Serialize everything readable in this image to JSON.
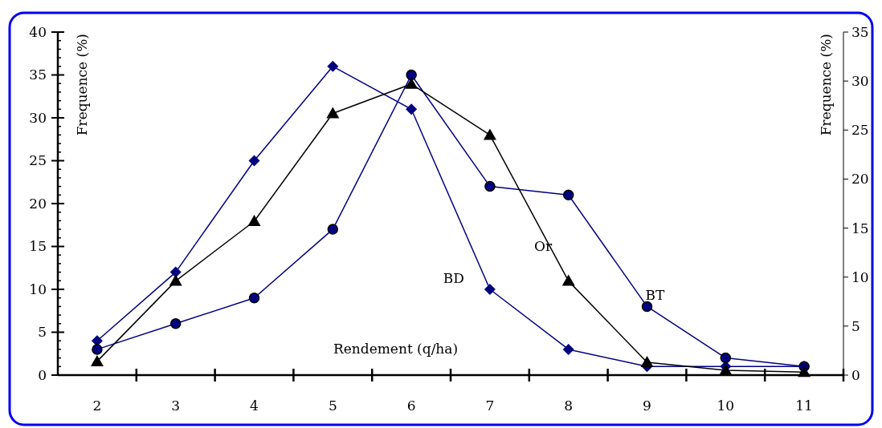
{
  "chart_data": {
    "type": "line",
    "xlabel": "Rendement (q/ha)",
    "ylabel": "Frequence (%)",
    "y2label": "Frequence (%)",
    "x": [
      2,
      3,
      4,
      5,
      6,
      7,
      8,
      9,
      10,
      11
    ],
    "xlim": [
      1.5,
      11.5
    ],
    "xticks": [
      2,
      {
        "value": 2.5,
        "label": null
      },
      3,
      {
        "value": 3.5,
        "label": null
      },
      4,
      {
        "value": 4.5,
        "label": null
      },
      5,
      {
        "value": 5.5,
        "label": null
      },
      6,
      {
        "value": 6.5,
        "label": null
      },
      7,
      {
        "value": 7.5,
        "label": null
      },
      8,
      {
        "value": 8.5,
        "label": null
      },
      9,
      {
        "value": 9.5,
        "label": null
      },
      10,
      {
        "value": 10.5,
        "label": null
      },
      11,
      {
        "value": 11.5,
        "label": null
      }
    ],
    "ylim": [
      0,
      40
    ],
    "yticks": [
      0,
      5,
      10,
      15,
      20,
      25,
      30,
      35,
      40
    ],
    "y2lim": [
      0,
      35
    ],
    "y2ticks": [
      0,
      5,
      10,
      15,
      20,
      25,
      30,
      35
    ],
    "series": [
      {
        "color": "#000080",
        "marker": "diamond",
        "values": [
          4,
          12,
          25,
          36,
          31,
          10,
          3,
          1,
          1,
          1
        ]
      },
      {
        "color": "#000080",
        "marker": "circle",
        "values": [
          3,
          6,
          9,
          17,
          35,
          22,
          21,
          8,
          2,
          1
        ]
      },
      {
        "color": "#000000",
        "marker": "triangle",
        "axis": "y2",
        "values": [
          1.4,
          9.6,
          15.7,
          26.7,
          29.7,
          24.5,
          9.6,
          1.3,
          0.5,
          0.3
        ]
      }
    ],
    "annotations": [
      {
        "text": "BD",
        "x": 7,
        "y": 10
      },
      {
        "text": "Or",
        "x": 7.8,
        "y": 15
      },
      {
        "text": "BT",
        "x": 9,
        "y": 8
      }
    ],
    "grid": false
  }
}
